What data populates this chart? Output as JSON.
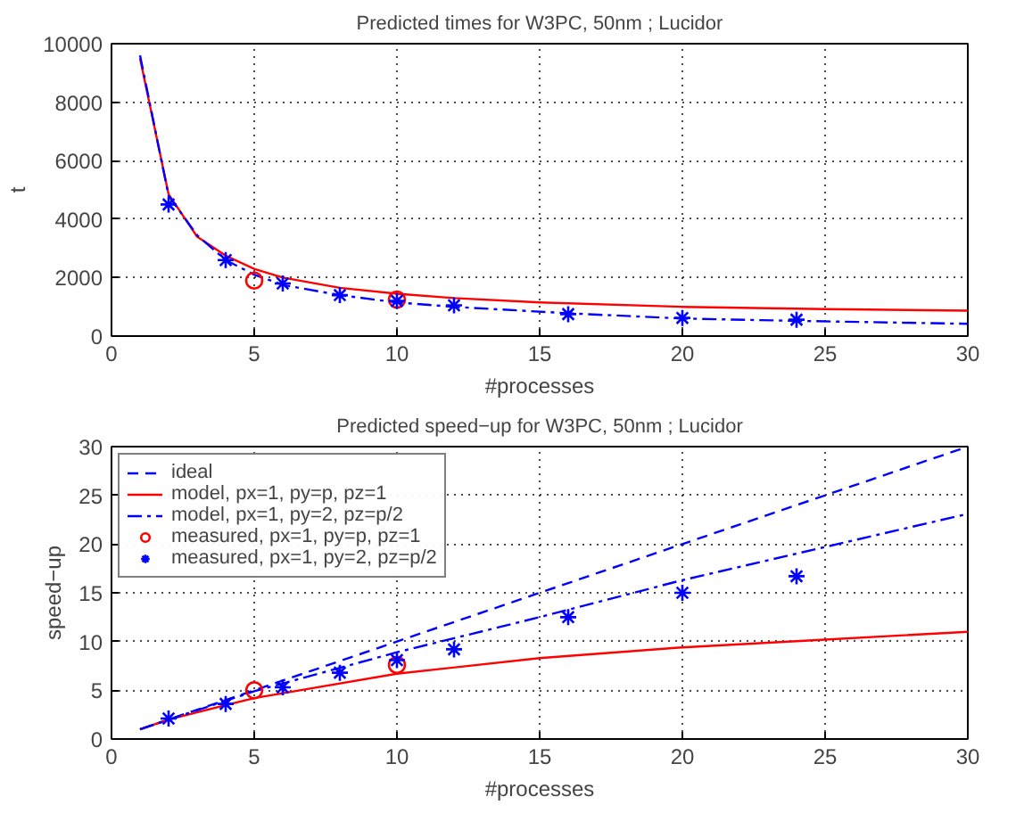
{
  "chart_data": [
    {
      "type": "line",
      "title": "Predicted times for W3PC, 50nm ; Lucidor",
      "xlabel": "#processes",
      "ylabel": "t",
      "xlim": [
        0,
        30
      ],
      "ylim": [
        0,
        10000
      ],
      "xticks": [
        0,
        5,
        10,
        15,
        20,
        25,
        30
      ],
      "yticks": [
        0,
        2000,
        4000,
        6000,
        8000,
        10000
      ],
      "grid": true,
      "legend": false,
      "series": [
        {
          "color": "#ff0000",
          "line_style": "solid",
          "x": [
            1,
            2,
            3,
            4,
            5,
            6,
            8,
            10,
            12,
            15,
            20,
            25,
            30
          ],
          "values": [
            9500,
            4850,
            3400,
            2750,
            2300,
            2000,
            1650,
            1450,
            1300,
            1150,
            1000,
            920,
            870
          ]
        },
        {
          "color": "#0000ff",
          "line_style": "dashdot",
          "x": [
            1,
            2,
            3,
            4,
            5,
            6,
            8,
            10,
            12,
            16,
            20,
            24,
            30
          ],
          "values": [
            9600,
            4800,
            3450,
            2600,
            2100,
            1750,
            1400,
            1150,
            1000,
            780,
            600,
            520,
            420
          ]
        },
        {
          "type": "scatter",
          "color": "#ff0000",
          "marker": "circle",
          "x": [
            5,
            10
          ],
          "values": [
            1900,
            1250
          ]
        },
        {
          "type": "scatter",
          "color": "#0000ff",
          "marker": "cross",
          "x": [
            2,
            4,
            6,
            8,
            10,
            12,
            16,
            20,
            24
          ],
          "values": [
            4500,
            2600,
            1800,
            1400,
            1200,
            1050,
            750,
            620,
            560
          ]
        }
      ]
    },
    {
      "type": "line",
      "title": "Predicted speed−up for W3PC, 50nm ; Lucidor",
      "xlabel": "#processes",
      "ylabel": "speed−up",
      "xlim": [
        0,
        30
      ],
      "ylim": [
        0,
        30
      ],
      "xticks": [
        0,
        5,
        10,
        15,
        20,
        25,
        30
      ],
      "yticks": [
        0,
        5,
        10,
        15,
        20,
        25,
        30
      ],
      "grid": true,
      "legend": "top left",
      "series": [
        {
          "name": "ideal",
          "color": "#0000ff",
          "line_style": "dashed",
          "x": [
            1,
            30
          ],
          "values": [
            1,
            30
          ]
        },
        {
          "name": "model, px=1, py=p, pz=1",
          "color": "#ff0000",
          "line_style": "solid",
          "x": [
            1,
            2,
            5,
            10,
            15,
            20,
            25,
            30
          ],
          "values": [
            1,
            2.0,
            4.2,
            6.7,
            8.3,
            9.4,
            10.2,
            11.0
          ]
        },
        {
          "name": "model, px=1, py=2, pz=p/2",
          "color": "#0000ff",
          "line_style": "dashdot",
          "x": [
            1,
            5,
            10,
            15,
            20,
            25,
            30
          ],
          "values": [
            1,
            4.9,
            8.9,
            12.5,
            16.3,
            19.7,
            23.1
          ]
        },
        {
          "type": "scatter",
          "name": "measured, px=1, py=p, pz=1",
          "color": "#ff0000",
          "marker": "circle",
          "x": [
            5,
            10
          ],
          "values": [
            5,
            7.6
          ]
        },
        {
          "type": "scatter",
          "name": "measured, px=1, py=2, pz=p/2",
          "color": "#0000ff",
          "marker": "cross",
          "x": [
            2,
            4,
            6,
            8,
            10,
            12,
            16,
            20,
            24
          ],
          "values": [
            2.1,
            3.6,
            5.3,
            6.8,
            8.1,
            9.2,
            12.5,
            15,
            16.7
          ]
        }
      ]
    }
  ]
}
